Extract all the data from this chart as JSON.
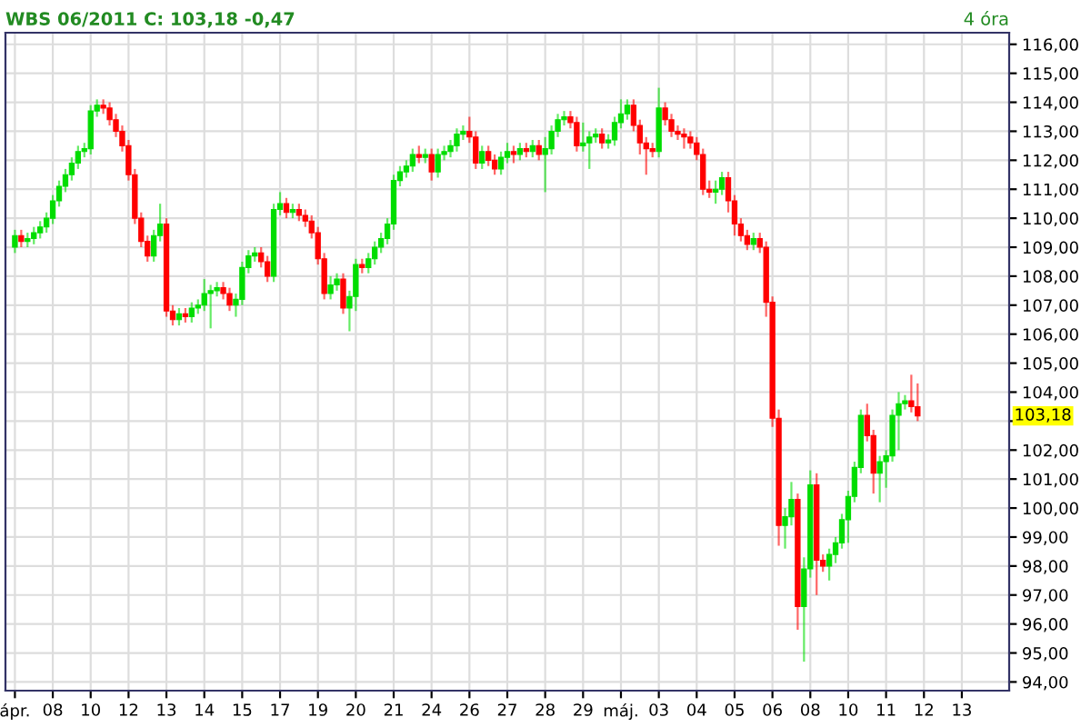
{
  "chart_data": {
    "type": "candlestick",
    "title": "WBS 06/2011 C: 103,18 -0,47",
    "subtitle": "4 óra",
    "annotations": [
      {
        "text": "103,18",
        "y": 103.18
      }
    ],
    "categories": [
      "ápr.",
      null,
      null,
      null,
      null,
      null,
      "08",
      null,
      null,
      null,
      null,
      null,
      "10",
      null,
      null,
      null,
      null,
      null,
      "12",
      null,
      null,
      null,
      null,
      null,
      "13",
      null,
      null,
      null,
      null,
      null,
      "14",
      null,
      null,
      null,
      null,
      null,
      "15",
      null,
      null,
      null,
      null,
      null,
      "17",
      null,
      null,
      null,
      null,
      null,
      "19",
      null,
      null,
      null,
      null,
      null,
      "20",
      null,
      null,
      null,
      null,
      null,
      "21",
      null,
      null,
      null,
      null,
      null,
      "24",
      null,
      null,
      null,
      null,
      null,
      "26",
      null,
      null,
      null,
      null,
      null,
      "27",
      null,
      null,
      null,
      null,
      null,
      "28",
      null,
      null,
      null,
      null,
      null,
      "29",
      null,
      null,
      null,
      null,
      null,
      "máj.",
      null,
      null,
      null,
      null,
      null,
      "03",
      null,
      null,
      null,
      null,
      null,
      "04",
      null,
      null,
      null,
      null,
      null,
      "05",
      null,
      null,
      null,
      null,
      null,
      "06",
      null,
      null,
      null,
      null,
      null,
      "08",
      null,
      null,
      null,
      null,
      null,
      "10",
      null,
      null,
      null,
      null,
      null,
      "11",
      null,
      null,
      null,
      null,
      null,
      "12",
      null,
      null,
      null,
      null,
      null,
      "13",
      null,
      null,
      null,
      null,
      null,
      null,
      null
    ],
    "ohlc": [
      [
        109.0,
        109.6,
        108.8,
        109.4
      ],
      [
        109.4,
        109.6,
        109.0,
        109.2
      ],
      [
        109.2,
        109.5,
        109.0,
        109.3
      ],
      [
        109.3,
        109.7,
        109.1,
        109.5
      ],
      [
        109.5,
        109.9,
        109.3,
        109.7
      ],
      [
        109.7,
        110.2,
        109.5,
        110.0
      ],
      [
        110.0,
        110.8,
        109.8,
        110.6
      ],
      [
        110.6,
        111.3,
        110.4,
        111.1
      ],
      [
        111.1,
        111.7,
        110.9,
        111.5
      ],
      [
        111.5,
        112.1,
        111.3,
        111.9
      ],
      [
        111.9,
        112.5,
        111.7,
        112.3
      ],
      [
        112.3,
        112.6,
        112.1,
        112.4
      ],
      [
        112.4,
        113.9,
        112.2,
        113.7
      ],
      [
        113.7,
        114.1,
        113.5,
        113.9
      ],
      [
        113.9,
        114.1,
        113.6,
        113.8
      ],
      [
        113.8,
        114.0,
        113.2,
        113.4
      ],
      [
        113.4,
        113.6,
        112.8,
        113.0
      ],
      [
        113.0,
        113.2,
        112.3,
        112.5
      ],
      [
        112.5,
        112.7,
        111.3,
        111.5
      ],
      [
        111.5,
        111.7,
        109.8,
        110.0
      ],
      [
        110.0,
        110.2,
        109.0,
        109.2
      ],
      [
        109.2,
        109.4,
        108.5,
        108.7
      ],
      [
        108.7,
        109.6,
        108.5,
        109.4
      ],
      [
        109.4,
        110.5,
        109.2,
        109.8
      ],
      [
        109.8,
        110.0,
        106.6,
        106.8
      ],
      [
        106.8,
        107.0,
        106.3,
        106.5
      ],
      [
        106.5,
        106.9,
        106.3,
        106.7
      ],
      [
        106.7,
        106.9,
        106.4,
        106.6
      ],
      [
        106.6,
        107.1,
        106.4,
        106.9
      ],
      [
        106.9,
        107.2,
        106.7,
        107.0
      ],
      [
        107.0,
        107.9,
        106.8,
        107.4
      ],
      [
        107.4,
        107.7,
        106.2,
        107.5
      ],
      [
        107.5,
        107.8,
        107.3,
        107.6
      ],
      [
        107.6,
        107.8,
        107.2,
        107.4
      ],
      [
        107.4,
        107.6,
        106.8,
        107.0
      ],
      [
        107.0,
        107.4,
        106.6,
        107.2
      ],
      [
        107.2,
        108.5,
        107.0,
        108.3
      ],
      [
        108.3,
        108.9,
        108.1,
        108.7
      ],
      [
        108.7,
        109.0,
        108.5,
        108.8
      ],
      [
        108.8,
        109.0,
        108.3,
        108.5
      ],
      [
        108.5,
        108.7,
        107.8,
        108.0
      ],
      [
        108.0,
        110.5,
        107.8,
        110.3
      ],
      [
        110.3,
        110.9,
        110.1,
        110.5
      ],
      [
        110.5,
        110.7,
        110.0,
        110.2
      ],
      [
        110.2,
        110.5,
        110.0,
        110.3
      ],
      [
        110.3,
        110.5,
        109.9,
        110.1
      ],
      [
        110.1,
        110.3,
        109.7,
        109.9
      ],
      [
        109.9,
        110.1,
        109.3,
        109.5
      ],
      [
        109.5,
        109.7,
        108.4,
        108.6
      ],
      [
        108.6,
        108.8,
        107.2,
        107.4
      ],
      [
        107.4,
        108.0,
        107.2,
        107.7
      ],
      [
        107.7,
        108.1,
        107.5,
        107.9
      ],
      [
        107.9,
        108.1,
        106.7,
        106.9
      ],
      [
        106.9,
        107.5,
        106.1,
        107.3
      ],
      [
        107.3,
        108.6,
        106.8,
        108.4
      ],
      [
        108.4,
        108.6,
        108.1,
        108.3
      ],
      [
        108.3,
        108.8,
        108.1,
        108.6
      ],
      [
        108.6,
        109.2,
        108.4,
        109.0
      ],
      [
        109.0,
        109.5,
        108.8,
        109.3
      ],
      [
        109.3,
        110.0,
        109.1,
        109.8
      ],
      [
        109.8,
        111.5,
        109.6,
        111.3
      ],
      [
        111.3,
        111.8,
        111.1,
        111.6
      ],
      [
        111.6,
        112.0,
        111.4,
        111.8
      ],
      [
        111.8,
        112.4,
        111.6,
        112.2
      ],
      [
        112.2,
        112.5,
        111.9,
        112.1
      ],
      [
        112.1,
        112.4,
        111.9,
        112.2
      ],
      [
        112.2,
        112.4,
        111.3,
        111.6
      ],
      [
        111.6,
        112.4,
        111.4,
        112.2
      ],
      [
        112.2,
        112.5,
        112.0,
        112.3
      ],
      [
        112.3,
        112.7,
        112.1,
        112.5
      ],
      [
        112.5,
        113.1,
        112.3,
        112.9
      ],
      [
        112.9,
        113.2,
        112.7,
        113.0
      ],
      [
        113.0,
        113.5,
        112.6,
        112.8
      ],
      [
        112.8,
        113.0,
        111.7,
        111.9
      ],
      [
        111.9,
        112.5,
        111.7,
        112.3
      ],
      [
        112.3,
        112.5,
        111.8,
        112.0
      ],
      [
        112.0,
        112.2,
        111.5,
        111.7
      ],
      [
        111.7,
        112.3,
        111.5,
        112.1
      ],
      [
        112.1,
        112.6,
        111.9,
        112.3
      ],
      [
        112.3,
        112.5,
        111.9,
        112.2
      ],
      [
        112.2,
        112.6,
        112.0,
        112.4
      ],
      [
        112.4,
        112.6,
        112.1,
        112.3
      ],
      [
        112.3,
        112.7,
        112.1,
        112.5
      ],
      [
        112.5,
        112.7,
        112.0,
        112.2
      ],
      [
        112.2,
        112.8,
        110.9,
        112.4
      ],
      [
        112.4,
        113.2,
        112.2,
        113.0
      ],
      [
        113.0,
        113.6,
        112.8,
        113.4
      ],
      [
        113.4,
        113.7,
        113.2,
        113.5
      ],
      [
        113.5,
        113.7,
        113.1,
        113.3
      ],
      [
        113.3,
        113.5,
        112.3,
        112.5
      ],
      [
        112.5,
        113.3,
        112.3,
        112.6
      ],
      [
        112.6,
        113.0,
        111.7,
        112.8
      ],
      [
        112.8,
        113.1,
        112.6,
        112.9
      ],
      [
        112.9,
        113.1,
        112.4,
        112.6
      ],
      [
        112.6,
        112.9,
        112.4,
        112.7
      ],
      [
        112.7,
        113.5,
        112.5,
        113.3
      ],
      [
        113.3,
        114.1,
        113.1,
        113.6
      ],
      [
        113.6,
        114.1,
        113.4,
        113.9
      ],
      [
        113.9,
        114.1,
        113.0,
        113.2
      ],
      [
        113.2,
        113.4,
        112.2,
        112.6
      ],
      [
        112.6,
        112.8,
        111.5,
        112.4
      ],
      [
        112.4,
        112.6,
        112.1,
        112.3
      ],
      [
        112.3,
        114.5,
        112.1,
        113.8
      ],
      [
        113.8,
        114.0,
        113.2,
        113.4
      ],
      [
        113.4,
        113.6,
        112.8,
        113.0
      ],
      [
        113.0,
        113.2,
        112.7,
        112.9
      ],
      [
        112.9,
        113.1,
        112.4,
        112.8
      ],
      [
        112.8,
        113.0,
        112.4,
        112.6
      ],
      [
        112.6,
        112.8,
        112.0,
        112.2
      ],
      [
        112.2,
        112.4,
        110.8,
        111.0
      ],
      [
        111.0,
        111.3,
        110.7,
        110.9
      ],
      [
        110.9,
        111.3,
        110.5,
        111.0
      ],
      [
        111.0,
        111.6,
        110.8,
        111.4
      ],
      [
        111.4,
        111.6,
        110.2,
        110.6
      ],
      [
        110.6,
        110.8,
        109.4,
        109.8
      ],
      [
        109.8,
        110.0,
        109.2,
        109.4
      ],
      [
        109.4,
        109.6,
        108.9,
        109.1
      ],
      [
        109.1,
        109.5,
        108.9,
        109.3
      ],
      [
        109.3,
        109.5,
        108.8,
        109.0
      ],
      [
        109.0,
        109.2,
        106.6,
        107.1
      ],
      [
        107.1,
        107.3,
        102.8,
        103.1
      ],
      [
        103.1,
        103.4,
        98.7,
        99.4
      ],
      [
        99.4,
        100.0,
        98.6,
        99.7
      ],
      [
        99.7,
        100.9,
        99.4,
        100.3
      ],
      [
        100.3,
        100.5,
        95.8,
        96.6
      ],
      [
        96.6,
        98.3,
        94.7,
        97.9
      ],
      [
        97.9,
        101.3,
        97.6,
        100.8
      ],
      [
        100.8,
        101.2,
        97.0,
        98.2
      ],
      [
        98.2,
        98.4,
        97.8,
        98.0
      ],
      [
        98.0,
        98.6,
        97.5,
        98.4
      ],
      [
        98.4,
        99.0,
        98.1,
        98.8
      ],
      [
        98.8,
        99.8,
        98.6,
        99.6
      ],
      [
        99.6,
        100.6,
        98.8,
        100.4
      ],
      [
        100.4,
        101.6,
        100.2,
        101.4
      ],
      [
        101.4,
        103.4,
        101.2,
        103.2
      ],
      [
        103.2,
        103.6,
        102.3,
        102.5
      ],
      [
        102.5,
        102.7,
        100.5,
        101.2
      ],
      [
        101.2,
        101.8,
        100.2,
        101.6
      ],
      [
        101.6,
        102.0,
        100.7,
        101.8
      ],
      [
        101.8,
        103.4,
        101.6,
        103.2
      ],
      [
        103.2,
        104.0,
        102.0,
        103.6
      ],
      [
        103.6,
        103.9,
        103.4,
        103.7
      ],
      [
        103.7,
        104.6,
        103.3,
        103.5
      ],
      [
        103.5,
        104.3,
        103.0,
        103.18
      ],
      null,
      null,
      null,
      null,
      null,
      null,
      null,
      null,
      null,
      null,
      null,
      null,
      null,
      null
    ],
    "colors": [
      "#00dd00",
      "#ff0000",
      "#00dd00",
      "#00dd00",
      "#00dd00",
      "#00dd00",
      "#00dd00",
      "#00dd00",
      "#00dd00",
      "#00dd00",
      "#00dd00",
      "#00dd00",
      "#00dd00",
      "#00dd00",
      "#ff0000",
      "#ff0000",
      "#ff0000",
      "#ff0000",
      "#ff0000",
      "#ff0000",
      "#ff0000",
      "#ff0000",
      "#00dd00",
      "#00dd00",
      "#ff0000",
      "#ff0000",
      "#00dd00",
      "#ff0000",
      "#00dd00",
      "#00dd00",
      "#00dd00",
      "#00dd00",
      "#00dd00",
      "#ff0000",
      "#ff0000",
      "#00dd00",
      "#00dd00",
      "#00dd00",
      "#00dd00",
      "#ff0000",
      "#ff0000",
      "#00dd00",
      "#00dd00",
      "#ff0000",
      "#00dd00",
      "#ff0000",
      "#ff0000",
      "#ff0000",
      "#ff0000",
      "#ff0000",
      "#00dd00",
      "#00dd00",
      "#ff0000",
      "#00dd00",
      "#00dd00",
      "#ff0000",
      "#00dd00",
      "#00dd00",
      "#00dd00",
      "#00dd00",
      "#00dd00",
      "#00dd00",
      "#00dd00",
      "#00dd00",
      "#ff0000",
      "#00dd00",
      "#ff0000",
      "#00dd00",
      "#00dd00",
      "#00dd00",
      "#00dd00",
      "#00dd00",
      "#ff0000",
      "#ff0000",
      "#00dd00",
      "#ff0000",
      "#ff0000",
      "#00dd00",
      "#00dd00",
      "#ff0000",
      "#00dd00",
      "#ff0000",
      "#00dd00",
      "#ff0000",
      "#00dd00",
      "#00dd00",
      "#00dd00",
      "#00dd00",
      "#ff0000",
      "#ff0000",
      "#00dd00",
      "#00dd00",
      "#00dd00",
      "#ff0000",
      "#00dd00",
      "#00dd00",
      "#00dd00",
      "#00dd00",
      "#ff0000",
      "#ff0000",
      "#ff0000",
      "#ff0000",
      "#00dd00",
      "#ff0000",
      "#ff0000",
      "#ff0000",
      "#ff0000",
      "#ff0000",
      "#ff0000",
      "#ff0000",
      "#ff0000",
      "#00dd00",
      "#00dd00",
      "#ff0000",
      "#ff0000",
      "#ff0000",
      "#ff0000",
      "#00dd00",
      "#ff0000",
      "#ff0000",
      "#ff0000",
      "#ff0000",
      "#00dd00",
      "#00dd00",
      "#ff0000",
      "#00dd00",
      "#00dd00",
      "#ff0000",
      "#ff0000",
      "#00dd00",
      "#00dd00",
      "#00dd00",
      "#00dd00",
      "#00dd00",
      "#00dd00",
      "#ff0000",
      "#ff0000",
      "#00dd00",
      "#00dd00",
      "#00dd00",
      "#00dd00",
      "#00dd00",
      "#ff0000",
      "#ff0000",
      null,
      null,
      null,
      null,
      null,
      null,
      null,
      null,
      null,
      null,
      null,
      null,
      null,
      null
    ],
    "ylim": [
      93.7,
      116.4
    ],
    "yticks": [
      {
        "value": 94,
        "label": "94,00"
      },
      {
        "value": 95,
        "label": "95,00"
      },
      {
        "value": 96,
        "label": "96,00"
      },
      {
        "value": 97,
        "label": "97,00"
      },
      {
        "value": 98,
        "label": "98,00"
      },
      {
        "value": 99,
        "label": "99,00"
      },
      {
        "value": 100,
        "label": "100,00"
      },
      {
        "value": 101,
        "label": "101,00"
      },
      {
        "value": 102,
        "label": "102,00"
      },
      {
        "value": 103,
        "label": null
      },
      {
        "value": 104,
        "label": "104,00"
      },
      {
        "value": 105,
        "label": "105,00"
      },
      {
        "value": 106,
        "label": "106,00"
      },
      {
        "value": 107,
        "label": "107,00"
      },
      {
        "value": 108,
        "label": "108,00"
      },
      {
        "value": 109,
        "label": "109,00"
      },
      {
        "value": 110,
        "label": "110,00"
      },
      {
        "value": 111,
        "label": "111,00"
      },
      {
        "value": 112,
        "label": "112,00"
      },
      {
        "value": 113,
        "label": "113,00"
      },
      {
        "value": 114,
        "label": "114,00"
      },
      {
        "value": 115,
        "label": "115,00"
      },
      {
        "value": 116,
        "label": "116,00"
      }
    ],
    "grid": true
  }
}
